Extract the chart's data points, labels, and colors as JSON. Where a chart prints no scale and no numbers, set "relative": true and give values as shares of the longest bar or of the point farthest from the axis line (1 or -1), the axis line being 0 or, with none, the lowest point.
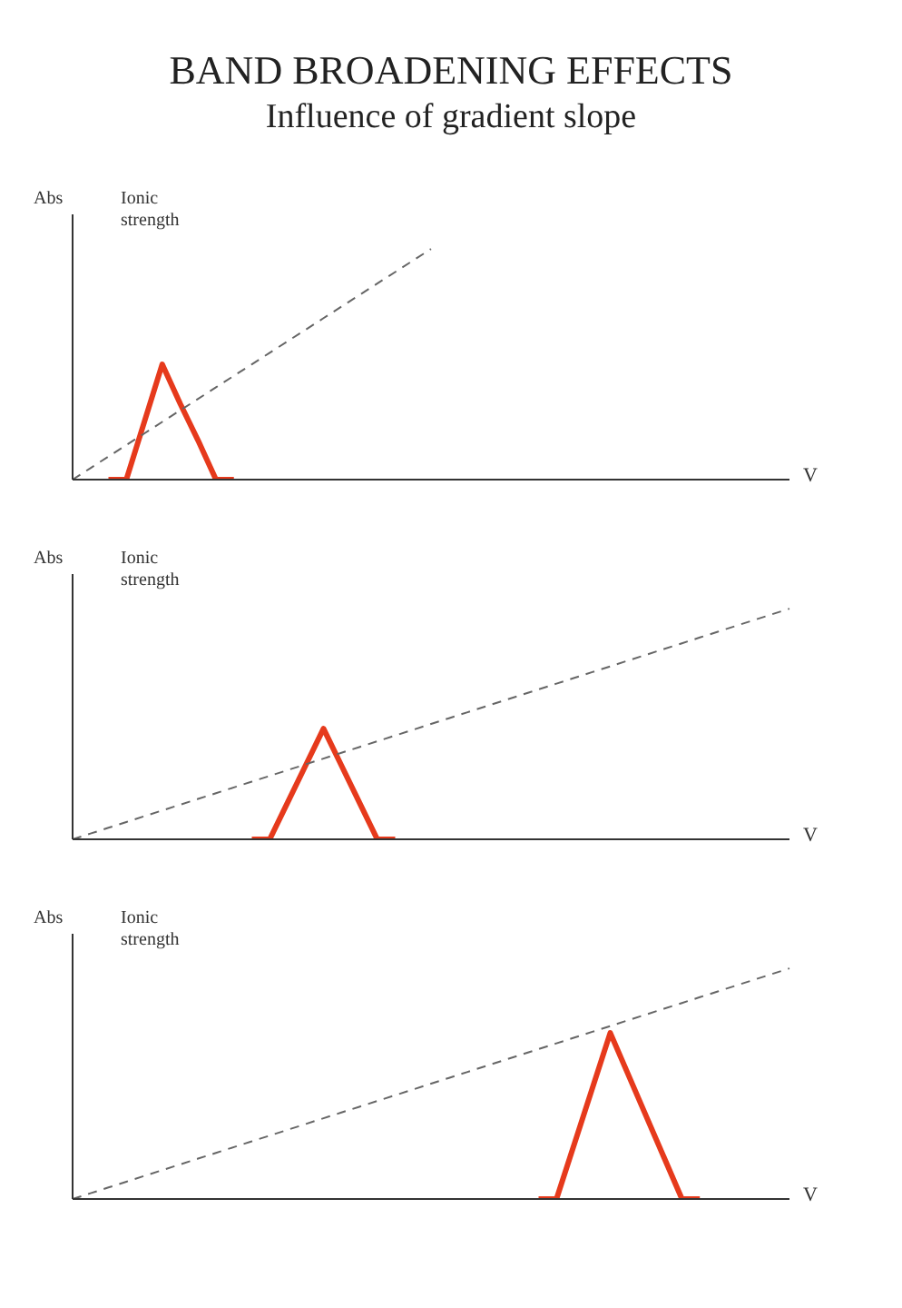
{
  "chart_data": [
    {
      "type": "line",
      "title": "BAND BROADENING EFFECTS",
      "subtitle": "Influence of gradient slope",
      "ylabel": "Abs",
      "y2label": "Ionic strength",
      "xlabel": "V",
      "relative": true,
      "grid": false,
      "legend": false,
      "marker": "none",
      "categories": [
        null,
        null,
        null,
        null,
        null,
        null,
        null,
        null,
        null,
        null,
        null,
        null,
        null,
        null,
        null,
        null,
        null,
        null,
        null,
        null,
        null,
        null,
        null,
        null,
        null,
        null,
        null,
        null,
        null,
        null,
        null,
        null,
        null,
        null,
        null,
        null,
        null,
        null,
        null,
        null,
        null
      ],
      "series": [
        {
          "color": "#e63a1c",
          "line_style": "solid",
          "values": [
            null,
            null,
            0,
            0,
            0.25,
            0.5,
            0.33,
            0.17,
            0,
            0,
            null,
            null,
            null,
            null,
            null,
            null,
            null,
            null,
            null,
            null,
            null,
            null,
            null,
            null,
            null,
            null,
            null,
            null,
            null,
            null,
            null,
            null,
            null,
            null,
            null,
            null,
            null,
            null,
            null,
            null,
            null
          ]
        },
        {
          "color": "#666666",
          "line_style": "dashed",
          "values": [
            0,
            0.05,
            0.1,
            0.15,
            0.2,
            0.25,
            0.3,
            0.35,
            0.4,
            0.45,
            0.5,
            0.55,
            0.6,
            0.65,
            0.7,
            0.75,
            0.8,
            0.85,
            0.9,
            0.95,
            1,
            null,
            null,
            null,
            null,
            null,
            null,
            null,
            null,
            null,
            null,
            null,
            null,
            null,
            null,
            null,
            null,
            null,
            null,
            null,
            null
          ]
        }
      ]
    },
    {
      "type": "line",
      "ylabel": "Abs",
      "y2label": "Ionic strength",
      "xlabel": "V",
      "relative": true,
      "grid": false,
      "legend": false,
      "marker": "none",
      "categories": [
        null,
        null,
        null,
        null,
        null,
        null,
        null,
        null,
        null,
        null,
        null,
        null,
        null,
        null,
        null,
        null,
        null,
        null,
        null,
        null,
        null,
        null,
        null,
        null,
        null,
        null,
        null,
        null,
        null,
        null,
        null,
        null,
        null,
        null,
        null,
        null,
        null,
        null,
        null,
        null,
        null
      ],
      "series": [
        {
          "color": "#e63a1c",
          "line_style": "solid",
          "values": [
            null,
            null,
            null,
            null,
            null,
            null,
            null,
            null,
            null,
            null,
            0,
            0,
            0.16,
            0.32,
            0.48,
            0.32,
            0.16,
            0,
            0,
            null,
            null,
            null,
            null,
            null,
            null,
            null,
            null,
            null,
            null,
            null,
            null,
            null,
            null,
            null,
            null,
            null,
            null,
            null,
            null,
            null,
            null
          ]
        },
        {
          "color": "#666666",
          "line_style": "dashed",
          "values": [
            0,
            0.025,
            0.05,
            0.075,
            0.1,
            0.125,
            0.15,
            0.175,
            0.2,
            0.225,
            0.25,
            0.275,
            0.3,
            0.325,
            0.35,
            0.375,
            0.4,
            0.425,
            0.45,
            0.475,
            0.5,
            0.525,
            0.55,
            0.575,
            0.6,
            0.625,
            0.65,
            0.675,
            0.7,
            0.725,
            0.75,
            0.775,
            0.8,
            0.825,
            0.85,
            0.875,
            0.9,
            0.925,
            0.95,
            0.975,
            1
          ]
        }
      ]
    },
    {
      "type": "line",
      "ylabel": "Abs",
      "y2label": "Ionic strength",
      "xlabel": "V",
      "relative": true,
      "grid": false,
      "legend": false,
      "marker": "none",
      "categories": [
        null,
        null,
        null,
        null,
        null,
        null,
        null,
        null,
        null,
        null,
        null,
        null,
        null,
        null,
        null,
        null,
        null,
        null,
        null,
        null,
        null,
        null,
        null,
        null,
        null,
        null,
        null,
        null,
        null,
        null,
        null,
        null,
        null,
        null,
        null,
        null,
        null,
        null,
        null,
        null,
        null
      ],
      "series": [
        {
          "color": "#e63a1c",
          "line_style": "solid",
          "values": [
            null,
            null,
            null,
            null,
            null,
            null,
            null,
            null,
            null,
            null,
            null,
            null,
            null,
            null,
            null,
            null,
            null,
            null,
            null,
            null,
            null,
            null,
            null,
            null,
            null,
            null,
            0,
            0,
            0.24,
            0.48,
            0.72,
            0.54,
            0.36,
            0.18,
            0,
            0,
            null,
            null,
            null,
            null,
            null
          ]
        },
        {
          "color": "#666666",
          "line_style": "dashed",
          "values": [
            0,
            0.025,
            0.05,
            0.075,
            0.1,
            0.125,
            0.15,
            0.175,
            0.2,
            0.225,
            0.25,
            0.275,
            0.3,
            0.325,
            0.35,
            0.375,
            0.4,
            0.425,
            0.45,
            0.475,
            0.5,
            0.525,
            0.55,
            0.575,
            0.6,
            0.625,
            0.65,
            0.675,
            0.7,
            0.725,
            0.75,
            0.775,
            0.8,
            0.825,
            0.85,
            0.875,
            0.9,
            0.925,
            0.95,
            0.975,
            1
          ]
        }
      ]
    }
  ]
}
